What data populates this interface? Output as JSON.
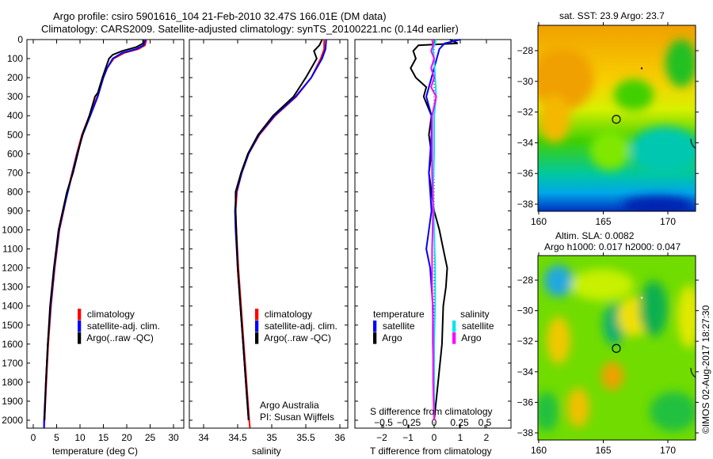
{
  "header": {
    "title_line1": "Argo profile: csiro 5901616_104 21-Feb-2010 32.47S 166.01E (DM data)",
    "title_line2": "Climatology: CARS2009. Satellite-adjusted climatology: synTS_20100221.nc (0.14d earlier)"
  },
  "colors": {
    "climatology": "#ff0000",
    "satellite": "#0000ff",
    "argo": "#000000",
    "sal_satellite": "#00e5ee",
    "sal_argo": "#ff00ff"
  },
  "chart_data": [
    {
      "type": "line",
      "name": "temperature",
      "xlabel": "temperature (deg C)",
      "ylabel": "",
      "xlim": [
        -2,
        32
      ],
      "ylim": [
        2040,
        0
      ],
      "xticks": [
        "0",
        "5",
        "10",
        "15",
        "20",
        "25",
        "30"
      ],
      "yticks": [
        "0",
        "100",
        "200",
        "300",
        "400",
        "500",
        "600",
        "700",
        "800",
        "900",
        "1000",
        "1100",
        "1200",
        "1300",
        "1400",
        "1500",
        "1600",
        "1700",
        "1800",
        "1900",
        "2000"
      ],
      "legend": [
        "climatology",
        "satellite-adj. clim.",
        "Argo(..raw -QC)"
      ],
      "legend_position": "lower-right",
      "series": [
        {
          "name": "climatology",
          "color": "#ff0000",
          "points": [
            [
              0,
              24.2
            ],
            [
              30,
              23.9
            ],
            [
              50,
              22.5
            ],
            [
              70,
              19.5
            ],
            [
              100,
              17.2
            ],
            [
              150,
              15.8
            ],
            [
              200,
              15.0
            ],
            [
              300,
              13.7
            ],
            [
              400,
              12.0
            ],
            [
              500,
              10.4
            ],
            [
              600,
              9.3
            ],
            [
              700,
              8.3
            ],
            [
              800,
              7.3
            ],
            [
              900,
              6.5
            ],
            [
              1000,
              5.6
            ],
            [
              1200,
              4.6
            ],
            [
              1400,
              3.8
            ],
            [
              1600,
              3.2
            ],
            [
              1800,
              2.8
            ],
            [
              2000,
              2.4
            ],
            [
              2040,
              2.3
            ]
          ]
        },
        {
          "name": "satellite-adj. clim.",
          "color": "#0000ff",
          "points": [
            [
              0,
              24.0
            ],
            [
              30,
              23.6
            ],
            [
              50,
              22.0
            ],
            [
              70,
              19.0
            ],
            [
              100,
              17.0
            ],
            [
              150,
              15.8
            ],
            [
              200,
              15.0
            ],
            [
              300,
              13.8
            ],
            [
              400,
              12.2
            ],
            [
              500,
              10.6
            ],
            [
              600,
              9.4
            ],
            [
              700,
              8.4
            ],
            [
              800,
              7.4
            ],
            [
              900,
              6.4
            ],
            [
              1000,
              5.5
            ],
            [
              1200,
              4.5
            ],
            [
              1400,
              3.7
            ],
            [
              1600,
              3.1
            ],
            [
              1800,
              2.7
            ],
            [
              2000,
              2.3
            ],
            [
              2040,
              2.3
            ]
          ]
        },
        {
          "name": "Argo(..raw -QC)",
          "color": "#000000",
          "points": [
            [
              0,
              23.5
            ],
            [
              20,
              23.5
            ],
            [
              40,
              22.0
            ],
            [
              60,
              19.0
            ],
            [
              80,
              17.0
            ],
            [
              100,
              16.2
            ],
            [
              150,
              15.5
            ],
            [
              200,
              14.8
            ],
            [
              280,
              13.8
            ],
            [
              300,
              13.2
            ],
            [
              400,
              12.0
            ],
            [
              500,
              10.5
            ],
            [
              600,
              9.5
            ],
            [
              700,
              8.5
            ],
            [
              800,
              7.2
            ],
            [
              900,
              6.3
            ],
            [
              1000,
              5.4
            ],
            [
              1200,
              4.4
            ],
            [
              1400,
              3.6
            ],
            [
              1600,
              3.1
            ],
            [
              1800,
              2.7
            ],
            [
              2000,
              2.4
            ]
          ]
        }
      ]
    },
    {
      "type": "line",
      "name": "salinity",
      "xlabel": "salinity",
      "xlim": [
        33.8,
        36.1
      ],
      "ylim": [
        2040,
        0
      ],
      "xticks": [
        "34",
        "34.5",
        "35",
        "35.5",
        "36"
      ],
      "legend": [
        "climatology",
        "satellite-adj. clim.",
        "Argo(..raw -QC)"
      ],
      "legend_position": "lower-right",
      "annotation": [
        "Argo Australia",
        "PI: Susan Wijffels"
      ],
      "series": [
        {
          "name": "climatology",
          "color": "#ff0000",
          "points": [
            [
              0,
              35.77
            ],
            [
              50,
              35.77
            ],
            [
              100,
              35.72
            ],
            [
              200,
              35.58
            ],
            [
              300,
              35.36
            ],
            [
              400,
              35.05
            ],
            [
              500,
              34.82
            ],
            [
              600,
              34.66
            ],
            [
              700,
              34.56
            ],
            [
              800,
              34.49
            ],
            [
              900,
              34.47
            ],
            [
              1000,
              34.48
            ],
            [
              1200,
              34.51
            ],
            [
              1400,
              34.55
            ],
            [
              1600,
              34.59
            ],
            [
              1800,
              34.63
            ],
            [
              2000,
              34.67
            ],
            [
              2040,
              34.68
            ]
          ]
        },
        {
          "name": "satellite-adj. clim.",
          "color": "#0000ff",
          "points": [
            [
              0,
              35.8
            ],
            [
              50,
              35.79
            ],
            [
              100,
              35.74
            ],
            [
              200,
              35.58
            ],
            [
              300,
              35.35
            ],
            [
              400,
              35.04
            ],
            [
              500,
              34.81
            ],
            [
              600,
              34.66
            ],
            [
              700,
              34.56
            ],
            [
              800,
              34.48
            ],
            [
              900,
              34.46
            ],
            [
              1000,
              34.47
            ],
            [
              1200,
              34.5
            ],
            [
              1400,
              34.54
            ],
            [
              1600,
              34.58
            ],
            [
              1800,
              34.62
            ],
            [
              2000,
              34.66
            ]
          ]
        },
        {
          "name": "Argo(..raw -QC)",
          "color": "#000000",
          "points": [
            [
              0,
              35.74
            ],
            [
              30,
              35.7
            ],
            [
              60,
              35.62
            ],
            [
              100,
              35.66
            ],
            [
              150,
              35.58
            ],
            [
              200,
              35.5
            ],
            [
              300,
              35.32
            ],
            [
              400,
              35.02
            ],
            [
              500,
              34.8
            ],
            [
              600,
              34.65
            ],
            [
              700,
              34.55
            ],
            [
              800,
              34.47
            ],
            [
              900,
              34.47
            ],
            [
              1000,
              34.48
            ],
            [
              1200,
              34.5
            ],
            [
              1400,
              34.54
            ],
            [
              1600,
              34.58
            ],
            [
              1800,
              34.62
            ],
            [
              2000,
              34.66
            ]
          ]
        }
      ]
    },
    {
      "type": "line",
      "name": "differences",
      "xlabel": "T difference from climatology",
      "xlabel2": "S difference from climatology",
      "xlim": [
        -3,
        3
      ],
      "xlim2": [
        -0.85,
        0.85
      ],
      "ylim": [
        2040,
        0
      ],
      "xticks": [
        "-2",
        "-1",
        "0",
        "1",
        "2"
      ],
      "xticks2": [
        "-0.5",
        "-0.25",
        "0",
        "0.25",
        "0.5"
      ],
      "legend_temperature": {
        "title": "temperature",
        "items": [
          "satellite",
          "Argo"
        ]
      },
      "legend_salinity": {
        "title": "salinity",
        "items": [
          "satellite",
          "Argo"
        ]
      },
      "series": [
        {
          "name": "temperature Argo",
          "axis": "T",
          "color": "#000000",
          "points": [
            [
              0,
              0.6
            ],
            [
              20,
              0.9
            ],
            [
              30,
              -0.6
            ],
            [
              60,
              -0.8
            ],
            [
              100,
              -0.7
            ],
            [
              150,
              -0.9
            ],
            [
              200,
              -0.7
            ],
            [
              250,
              -0.3
            ],
            [
              300,
              -0.4
            ],
            [
              400,
              -0.1
            ],
            [
              500,
              -0.2
            ],
            [
              600,
              -0.1
            ],
            [
              700,
              -0.2
            ],
            [
              800,
              -0.1
            ],
            [
              900,
              0.0
            ],
            [
              1000,
              0.2
            ],
            [
              1100,
              0.35
            ],
            [
              1200,
              0.5
            ],
            [
              1300,
              0.45
            ],
            [
              1400,
              0.35
            ],
            [
              1600,
              0.3
            ],
            [
              1800,
              0.15
            ],
            [
              2000,
              0.0
            ]
          ]
        },
        {
          "name": "temperature satellite",
          "axis": "T",
          "color": "#0000ff",
          "points": [
            [
              0,
              1.0
            ],
            [
              20,
              0.4
            ],
            [
              50,
              0.2
            ],
            [
              100,
              0.1
            ],
            [
              200,
              -0.1
            ],
            [
              300,
              -0.3
            ],
            [
              400,
              -0.1
            ],
            [
              500,
              -0.1
            ],
            [
              700,
              -0.2
            ],
            [
              900,
              -0.1
            ],
            [
              1000,
              -0.2
            ],
            [
              1100,
              -0.3
            ],
            [
              1200,
              -0.15
            ],
            [
              1400,
              -0.05
            ],
            [
              1600,
              -0.05
            ],
            [
              1800,
              0.0
            ],
            [
              2000,
              0.0
            ]
          ]
        },
        {
          "name": "salinity satellite",
          "axis": "S",
          "color": "#00e5ee",
          "points": [
            [
              0,
              0.02
            ],
            [
              50,
              -0.01
            ],
            [
              100,
              0.0
            ],
            [
              200,
              0.01
            ],
            [
              300,
              0.02
            ],
            [
              400,
              0.0
            ],
            [
              600,
              0.0
            ],
            [
              800,
              -0.01
            ],
            [
              1000,
              0.0
            ],
            [
              1200,
              0.01
            ],
            [
              1400,
              0.01
            ],
            [
              1600,
              0.0
            ],
            [
              1800,
              0.0
            ],
            [
              2000,
              0.0
            ]
          ]
        },
        {
          "name": "salinity Argo",
          "axis": "S",
          "color": "#ff00ff",
          "points": [
            [
              0,
              -0.02
            ],
            [
              30,
              -0.01
            ],
            [
              60,
              -0.03
            ],
            [
              100,
              0.0
            ],
            [
              150,
              -0.03
            ],
            [
              200,
              0.0
            ],
            [
              250,
              -0.03
            ],
            [
              300,
              0.02
            ],
            [
              400,
              -0.02
            ],
            [
              500,
              -0.02
            ],
            [
              700,
              -0.02
            ],
            [
              900,
              -0.01
            ],
            [
              1100,
              -0.02
            ],
            [
              1300,
              -0.02
            ],
            [
              1500,
              -0.01
            ],
            [
              1800,
              -0.01
            ],
            [
              2000,
              0.0
            ]
          ]
        }
      ]
    },
    {
      "type": "heatmap",
      "name": "sst-map",
      "title": "sat. SST: 23.9 Argo: 23.7",
      "xticks": [
        "160",
        "165",
        "170"
      ],
      "yticks": [
        "-28",
        "-30",
        "-32",
        "-34",
        "-36",
        "-38"
      ],
      "argo_position": [
        166.01,
        -32.47
      ]
    },
    {
      "type": "heatmap",
      "name": "sla-map",
      "title_line1": "Altim. SLA: 0.0082",
      "title_line2": "Argo h1000: 0.017 h2000: 0.047",
      "xticks": [
        "160",
        "165",
        "170"
      ],
      "yticks": [
        "-28",
        "-30",
        "-32",
        "-34",
        "-36",
        "-38"
      ],
      "argo_position": [
        166.01,
        -32.47
      ]
    }
  ],
  "footer": {
    "credit": "©IMOS 02-Aug-2017 18:27:30"
  }
}
